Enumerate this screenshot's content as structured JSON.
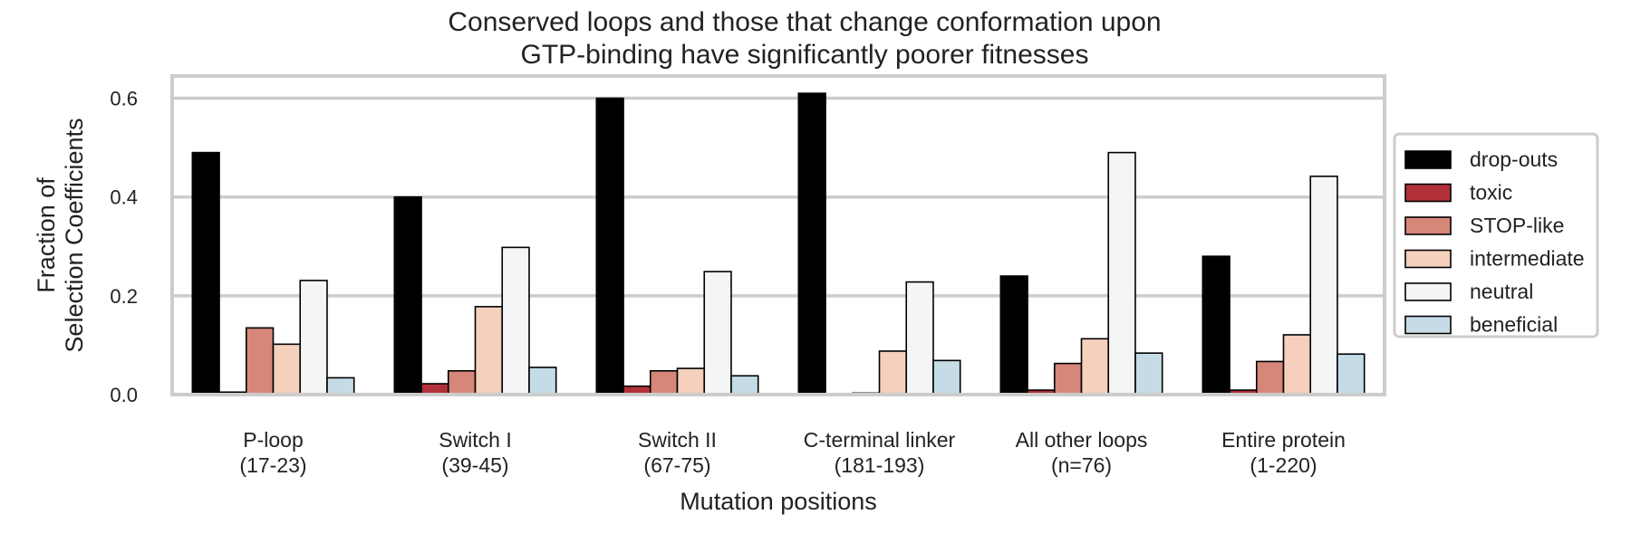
{
  "chart_data": {
    "type": "bar",
    "title_lines": [
      "Conserved loops and those that change conformation upon",
      "GTP-binding have significantly poorer fitnesses"
    ],
    "xlabel": "Mutation positions",
    "ylabel_lines": [
      "Fraction of",
      "Selection Coefficients"
    ],
    "ylim": [
      0,
      0.645
    ],
    "yticks": [
      {
        "value": 0.0,
        "label": "0.0"
      },
      {
        "value": 0.2,
        "label": "0.2"
      },
      {
        "value": 0.4,
        "label": "0.4"
      },
      {
        "value": 0.6,
        "label": "0.6"
      }
    ],
    "grid": true,
    "legend_position": "right, outside plot",
    "categories": [
      {
        "line1": "P-loop",
        "line2": "(17-23)"
      },
      {
        "line1": "Switch I",
        "line2": "(39-45)"
      },
      {
        "line1": "Switch II",
        "line2": "(67-75)"
      },
      {
        "line1": "C-terminal linker",
        "line2": "(181-193)"
      },
      {
        "line1": "All other loops",
        "line2": "(n=76)"
      },
      {
        "line1": "Entire protein",
        "line2": "(1-220)"
      }
    ],
    "series": [
      {
        "name": "drop-outs",
        "color": "#000000",
        "values": [
          0.49,
          0.4,
          0.6,
          0.61,
          0.24,
          0.28
        ]
      },
      {
        "name": "toxic",
        "color": "#b2303a",
        "values": [
          0.005,
          0.022,
          0.017,
          0.0,
          0.009,
          0.009
        ]
      },
      {
        "name": "STOP-like",
        "color": "#d6877a",
        "values": [
          0.135,
          0.048,
          0.048,
          0.003,
          0.063,
          0.067
        ]
      },
      {
        "name": "intermediate",
        "color": "#f4d0bd",
        "values": [
          0.102,
          0.178,
          0.053,
          0.088,
          0.113,
          0.121
        ]
      },
      {
        "name": "neutral",
        "color": "#f4f6f6",
        "values": [
          0.231,
          0.298,
          0.249,
          0.228,
          0.49,
          0.442
        ]
      },
      {
        "name": "beneficial",
        "color": "#c5dce7",
        "values": [
          0.034,
          0.055,
          0.038,
          0.069,
          0.084,
          0.082
        ]
      }
    ]
  }
}
